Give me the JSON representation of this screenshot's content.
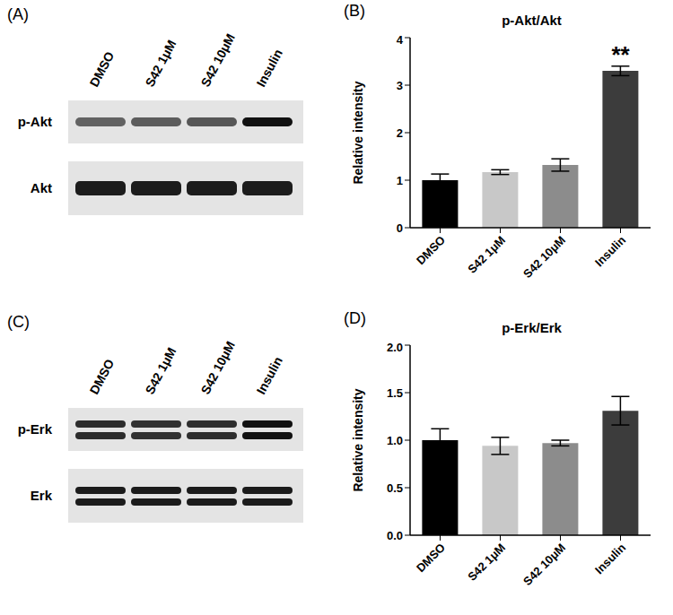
{
  "blots": [
    {
      "panel": "(A)",
      "lanes": [
        "DMSO",
        "S42 1μM",
        "S42 10μM",
        "Insulin"
      ],
      "rows": [
        "p-Akt",
        "Akt"
      ]
    },
    {
      "panel": "(C)",
      "lanes": [
        "DMSO",
        "S42 1μM",
        "S42 10μM",
        "Insulin"
      ],
      "rows": [
        "p-Erk",
        "Erk"
      ]
    }
  ],
  "chart_data": [
    {
      "panel": "(B)",
      "type": "bar",
      "title": "p-Akt/Akt",
      "y_label": "Relative intensity",
      "categories": [
        "DMSO",
        "S42 1μM",
        "S42 10μM",
        "Insulin"
      ],
      "values": [
        1.0,
        1.17,
        1.32,
        3.3
      ],
      "errors": [
        0.13,
        0.05,
        0.13,
        0.1
      ],
      "colors": [
        "#000000",
        "#c8c8c8",
        "#8c8c8c",
        "#3c3c3c"
      ],
      "ylim": [
        0,
        4
      ],
      "yticks": [
        0,
        1,
        2,
        3,
        4
      ],
      "grid": false,
      "annotations": [
        {
          "category": "Insulin",
          "text": "**"
        }
      ]
    },
    {
      "panel": "(D)",
      "type": "bar",
      "title": "p-Erk/Erk",
      "y_label": "Relative intensity",
      "categories": [
        "DMSO",
        "S42 1μM",
        "S42 10μM",
        "Insulin"
      ],
      "values": [
        1.0,
        0.94,
        0.97,
        1.31
      ],
      "errors": [
        0.12,
        0.09,
        0.03,
        0.15
      ],
      "colors": [
        "#000000",
        "#c8c8c8",
        "#8c8c8c",
        "#3c3c3c"
      ],
      "ylim": [
        0,
        2
      ],
      "yticks": [
        {
          "value": 0,
          "label": "0.0"
        },
        0.5,
        {
          "value": 1,
          "label": "1.0"
        },
        1.5,
        {
          "value": 2,
          "label": "2.0"
        }
      ],
      "grid": false,
      "annotations": []
    }
  ]
}
